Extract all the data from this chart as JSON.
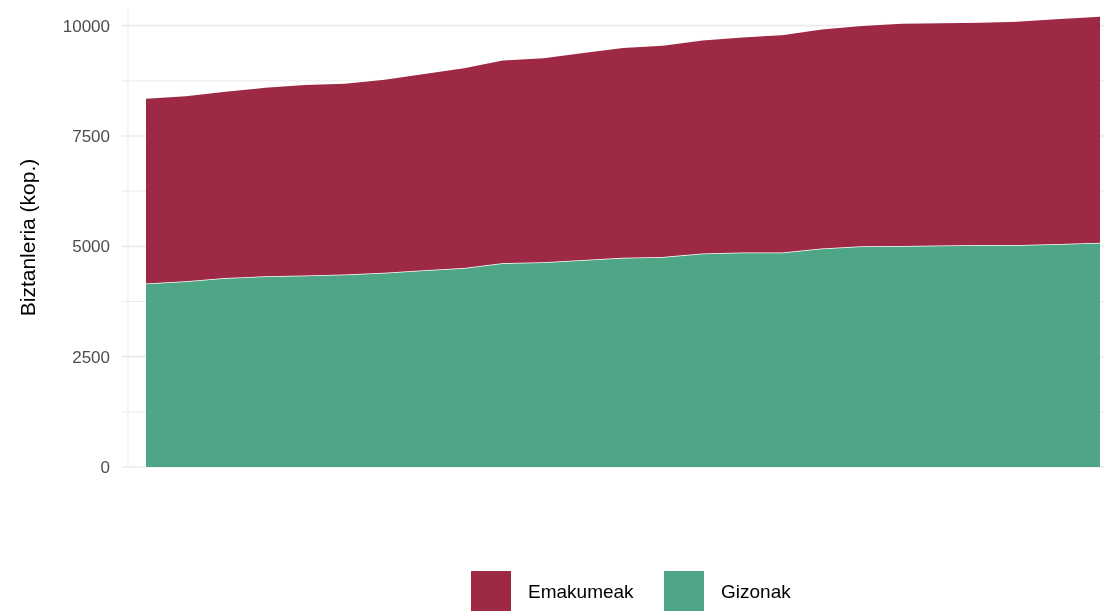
{
  "chart_data": {
    "type": "area",
    "stacked": true,
    "ylabel": "Biztanleria (kop.)",
    "categories": [
      null,
      null,
      null,
      null,
      null,
      null,
      null,
      null,
      null,
      null,
      null,
      null,
      null,
      null,
      null,
      null,
      null,
      null,
      null,
      null,
      null,
      null,
      null,
      null,
      null
    ],
    "series": [
      {
        "name": "Gizonak",
        "color": "#4ea686",
        "values": [
          4160,
          4210,
          4280,
          4320,
          4340,
          4360,
          4400,
          4460,
          4510,
          4620,
          4640,
          4690,
          4740,
          4760,
          4840,
          4860,
          4860,
          4950,
          5000,
          5010,
          5020,
          5030,
          5030,
          5050,
          5080
        ]
      },
      {
        "name": "Emakumeak",
        "color": "#9e2944",
        "values": [
          4200,
          4210,
          4240,
          4290,
          4330,
          4340,
          4390,
          4460,
          4540,
          4610,
          4640,
          4710,
          4770,
          4800,
          4840,
          4890,
          4940,
          4980,
          5010,
          5050,
          5050,
          5050,
          5080,
          5120,
          5140
        ]
      }
    ],
    "ylim": [
      0,
      10400
    ],
    "yticks": [
      0,
      {
        "value": 1250,
        "label": null
      },
      2500,
      {
        "value": 3750,
        "label": null
      },
      5000,
      {
        "value": 6250,
        "label": null
      },
      7500,
      {
        "value": 8750,
        "label": null
      },
      10000
    ],
    "grid": "y",
    "legend": "bottom"
  }
}
